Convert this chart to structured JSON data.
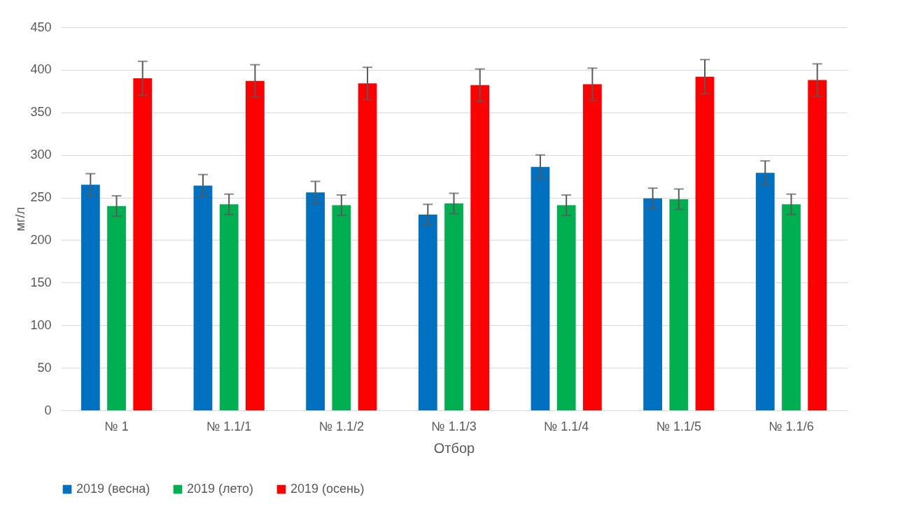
{
  "chart_data": {
    "type": "bar",
    "xlabel": "Отбор",
    "ylabel": "мг/л",
    "categories": [
      "№ 1",
      "№ 1.1/1",
      "№  1.1/2",
      "№ 1.1/3",
      "№ 1.1/4",
      "№ 1.1/5",
      "№ 1.1/6"
    ],
    "series": [
      {
        "name": "2019 (весна)",
        "color": "#0070c0",
        "values": [
          265,
          264,
          256,
          230,
          286,
          249,
          279
        ],
        "errors": [
          13,
          13,
          13,
          12,
          14,
          12,
          14
        ]
      },
      {
        "name": "2019 (лето)",
        "color": "#00b050",
        "values": [
          240,
          242,
          241,
          243,
          241,
          248,
          242
        ],
        "errors": [
          12,
          12,
          12,
          12,
          12,
          12,
          12
        ]
      },
      {
        "name": "2019 (осень)",
        "color": "#ff0000",
        "values": [
          390,
          387,
          384,
          382,
          383,
          392,
          388
        ],
        "errors": [
          20,
          19,
          19,
          19,
          19,
          20,
          19
        ]
      }
    ],
    "ylim": [
      0,
      450
    ],
    "yticks": [
      0,
      50,
      100,
      150,
      200,
      250,
      300,
      350,
      400,
      450
    ],
    "grid": "y",
    "legend": "bottom"
  }
}
